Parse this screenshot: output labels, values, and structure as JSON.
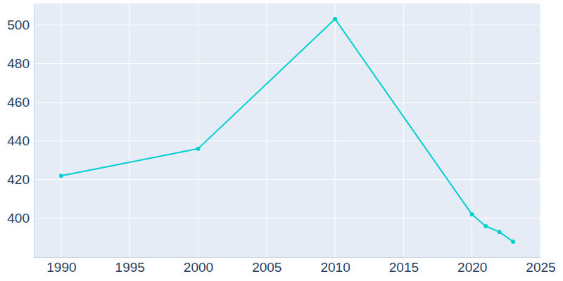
{
  "chart_data": {
    "type": "line",
    "x": [
      1990,
      2000,
      2010,
      2020,
      2021,
      2022,
      2023
    ],
    "values": [
      422,
      436,
      503,
      402,
      396,
      393,
      388
    ],
    "color": "#00ced1",
    "marker": "circle",
    "xlim": [
      1988,
      2025
    ],
    "xticks": [
      1990,
      1995,
      2000,
      2005,
      2010,
      2015,
      2020,
      2025
    ],
    "ylim": [
      380,
      511
    ],
    "yticks": [
      400,
      420,
      440,
      460,
      480,
      500
    ],
    "grid": true
  }
}
